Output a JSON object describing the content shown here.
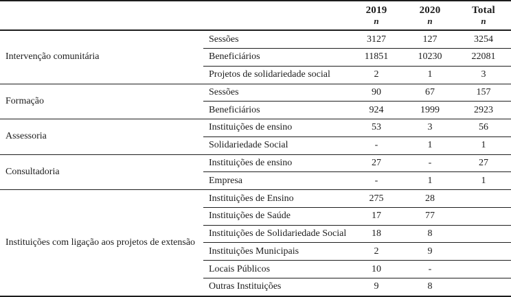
{
  "colors": {
    "line": "#1c1c1c",
    "text": "#1c1c1c",
    "background": "#ffffff"
  },
  "chart_data": {
    "type": "table",
    "header": {
      "col_2019": {
        "label": "2019",
        "sub": "n"
      },
      "col_2020": {
        "label": "2020",
        "sub": "n"
      },
      "col_total": {
        "label": "Total",
        "sub": "n"
      }
    },
    "groups": [
      {
        "label": "Intervenção comunitária",
        "rows": [
          {
            "label": "Sessões",
            "y2019": "3127",
            "y2020": "127",
            "total": "3254"
          },
          {
            "label": "Beneficiários",
            "y2019": "11851",
            "y2020": "10230",
            "total": "22081"
          },
          {
            "label": "Projetos de solidariedade social",
            "y2019": "2",
            "y2020": "1",
            "total": "3"
          }
        ]
      },
      {
        "label": "Formação",
        "rows": [
          {
            "label": "Sessões",
            "y2019": "90",
            "y2020": "67",
            "total": "157"
          },
          {
            "label": "Beneficiários",
            "y2019": "924",
            "y2020": "1999",
            "total": "2923"
          }
        ]
      },
      {
        "label": "Assessoria",
        "rows": [
          {
            "label": "Instituições de ensino",
            "y2019": "53",
            "y2020": "3",
            "total": "56"
          },
          {
            "label": "Solidariedade Social",
            "y2019": "-",
            "y2020": "1",
            "total": "1"
          }
        ]
      },
      {
        "label": "Consultadoria",
        "rows": [
          {
            "label": "Instituições de ensino",
            "y2019": "27",
            "y2020": "-",
            "total": "27"
          },
          {
            "label": "Empresa",
            "y2019": "-",
            "y2020": "1",
            "total": "1"
          }
        ]
      },
      {
        "label": "Instituições com ligação aos projetos de extensão",
        "rows": [
          {
            "label": "Instituições de Ensino",
            "y2019": "275",
            "y2020": "28",
            "total": ""
          },
          {
            "label": "Instituições de Saúde",
            "y2019": "17",
            "y2020": "77",
            "total": ""
          },
          {
            "label": "Instituições de Solidariedade Social",
            "y2019": "18",
            "y2020": "8",
            "total": ""
          },
          {
            "label": "Instituições Municipais",
            "y2019": "2",
            "y2020": "9",
            "total": ""
          },
          {
            "label": "Locais Públicos",
            "y2019": "10",
            "y2020": "-",
            "total": ""
          },
          {
            "label": "Outras Instituições",
            "y2019": "9",
            "y2020": "8",
            "total": ""
          }
        ]
      }
    ]
  }
}
